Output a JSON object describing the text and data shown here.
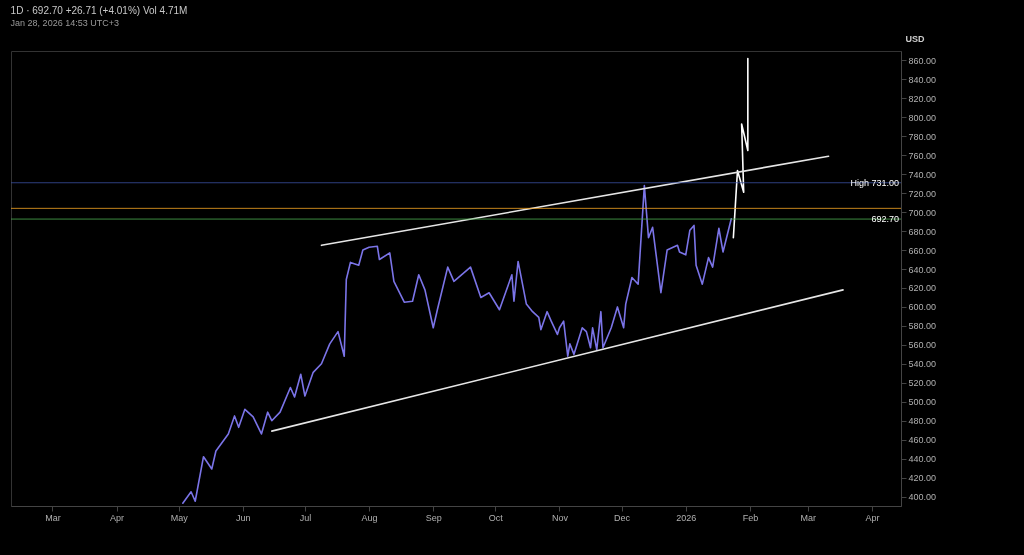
{
  "chart_data": {
    "type": "line",
    "title": "1D · 692.70 +26.71 (+4.01%) Vol 4.71M",
    "subtitle": "Jan 28, 2026 14:53 UTC+3",
    "ylabel": "USD",
    "xlim": [
      "2025-02-09",
      "2026-04-15"
    ],
    "xticks": [
      {
        "value": "2025-03-01",
        "label": "Mar"
      },
      {
        "value": "2025-04-01",
        "label": "Apr"
      },
      {
        "value": "2025-05-01",
        "label": "May"
      },
      {
        "value": "2025-06-01",
        "label": "Jun"
      },
      {
        "value": "2025-07-01",
        "label": "Jul"
      },
      {
        "value": "2025-08-01",
        "label": "Aug"
      },
      {
        "value": "2025-09-01",
        "label": "Sep"
      },
      {
        "value": "2025-10-01",
        "label": "Oct"
      },
      {
        "value": "2025-11-01",
        "label": "Nov"
      },
      {
        "value": "2025-12-01",
        "label": "Dec"
      },
      {
        "value": "2026-01-01",
        "label": "2026"
      },
      {
        "value": "2026-02-01",
        "label": "Feb"
      },
      {
        "value": "2026-03-01",
        "label": "Mar"
      },
      {
        "value": "2026-04-01",
        "label": "Apr"
      }
    ],
    "ylim": [
      390,
      870
    ],
    "yticks": [
      {
        "value": 400,
        "label": "400.00"
      },
      {
        "value": 420,
        "label": "420.00"
      },
      {
        "value": 440,
        "label": "440.00"
      },
      {
        "value": 460,
        "label": "460.00"
      },
      {
        "value": 480,
        "label": "480.00"
      },
      {
        "value": 500,
        "label": "500.00"
      },
      {
        "value": 520,
        "label": "520.00"
      },
      {
        "value": 540,
        "label": "540.00"
      },
      {
        "value": 560,
        "label": "560.00"
      },
      {
        "value": 580,
        "label": "580.00"
      },
      {
        "value": 600,
        "label": "600.00"
      },
      {
        "value": 620,
        "label": "620.00"
      },
      {
        "value": 640,
        "label": "640.00"
      },
      {
        "value": 660,
        "label": "660.00"
      },
      {
        "value": 680,
        "label": "680.00"
      },
      {
        "value": 700,
        "label": "700.00"
      },
      {
        "value": 720,
        "label": "720.00"
      },
      {
        "value": 740,
        "label": "740.00"
      },
      {
        "value": 760,
        "label": "760.00"
      },
      {
        "value": 780,
        "label": "780.00"
      },
      {
        "value": 800,
        "label": "800.00"
      },
      {
        "value": 820,
        "label": "820.00"
      },
      {
        "value": 840,
        "label": "840.00"
      },
      {
        "value": 860,
        "label": "860.00"
      }
    ],
    "grid": false,
    "ref_lines": [
      {
        "axis": "y",
        "value": 731,
        "label": "High 731.00",
        "color": "#3a4fa0"
      },
      {
        "axis": "y",
        "value": 704,
        "color": "#f5a623"
      },
      {
        "axis": "y",
        "value": 692.7,
        "label": "692.70",
        "color": "#4caf50"
      }
    ],
    "series": [
      {
        "color": "#7b74e8",
        "x": [
          "2025-05-03",
          "2025-05-07",
          "2025-05-09",
          "2025-05-13",
          "2025-05-17",
          "2025-05-19",
          "2025-05-25",
          "2025-05-28",
          "2025-05-30",
          "2025-06-02",
          "2025-06-06",
          "2025-06-10",
          "2025-06-13",
          "2025-06-15",
          "2025-06-19",
          "2025-06-24",
          "2025-06-26",
          "2025-06-29",
          "2025-07-01",
          "2025-07-05",
          "2025-07-09",
          "2025-07-13",
          "2025-07-17",
          "2025-07-20",
          "2025-07-21",
          "2025-07-23",
          "2025-07-27",
          "2025-07-29",
          "2025-08-01",
          "2025-08-05",
          "2025-08-06",
          "2025-08-11",
          "2025-08-13",
          "2025-08-18",
          "2025-08-22",
          "2025-08-25",
          "2025-08-28",
          "2025-09-01",
          "2025-09-03",
          "2025-09-08",
          "2025-09-11",
          "2025-09-19",
          "2025-09-24",
          "2025-09-28",
          "2025-10-03",
          "2025-10-09",
          "2025-10-10",
          "2025-10-12",
          "2025-10-16",
          "2025-10-19",
          "2025-10-22",
          "2025-10-23",
          "2025-10-26",
          "2025-10-28",
          "2025-10-31",
          "2025-11-01",
          "2025-11-03",
          "2025-11-05",
          "2025-11-06",
          "2025-11-08",
          "2025-11-12",
          "2025-11-14",
          "2025-11-16",
          "2025-11-17",
          "2025-11-19",
          "2025-11-21",
          "2025-11-22",
          "2025-11-26",
          "2025-11-29",
          "2025-12-02",
          "2025-12-03",
          "2025-12-06",
          "2025-12-09",
          "2025-12-12",
          "2025-12-14",
          "2025-12-16",
          "2025-12-20",
          "2025-12-23",
          "2025-12-28",
          "2025-12-29",
          "2026-01-01",
          "2026-01-03",
          "2026-01-05",
          "2026-01-06",
          "2026-01-09",
          "2026-01-12",
          "2026-01-14",
          "2026-01-17",
          "2026-01-19",
          "2026-01-23"
        ],
        "values": [
          393,
          405,
          395,
          442,
          429,
          448,
          466,
          485,
          473,
          492,
          484,
          466,
          489,
          480,
          489,
          515,
          505,
          529,
          506,
          531,
          540,
          561,
          574,
          548,
          629,
          647,
          644,
          660,
          663,
          664,
          650,
          657,
          627,
          605,
          606,
          634,
          618,
          578,
          597,
          642,
          627,
          642,
          610,
          615,
          597,
          634,
          606,
          648,
          603,
          595,
          589,
          576,
          595,
          585,
          571,
          578,
          585,
          548,
          561,
          550,
          578,
          574,
          557,
          578,
          555,
          595,
          557,
          578,
          600,
          578,
          603,
          631,
          624,
          728,
          673,
          684,
          615,
          660,
          665,
          658,
          655,
          681,
          686,
          644,
          624,
          652,
          642,
          683,
          658,
          693
        ]
      },
      {
        "color": "#ffffff",
        "x": [
          "2026-01-24",
          "2026-01-26",
          "2026-01-29",
          "2026-01-28",
          "2026-01-31",
          "2026-01-31"
        ],
        "values": [
          673,
          744,
          721,
          793,
          765,
          862
        ]
      },
      {
        "color": "#e6e6e6",
        "x": [
          "2025-07-09",
          "2026-03-11"
        ],
        "values": [
          665,
          759
        ]
      },
      {
        "color": "#e6e6e6",
        "x": [
          "2025-06-15",
          "2026-03-18"
        ],
        "values": [
          469,
          618
        ]
      }
    ]
  }
}
